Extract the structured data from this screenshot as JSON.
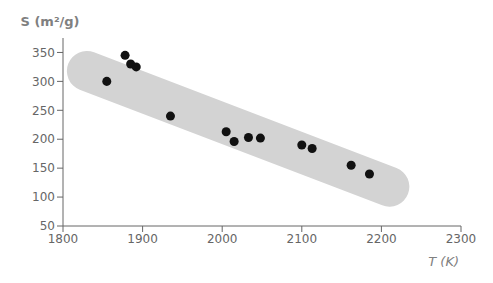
{
  "chart_data": {
    "type": "scatter",
    "xlabel": "T (K)",
    "ylabel": "S (m²/g)",
    "x": [
      1855,
      1878,
      1885,
      1892,
      1935,
      2005,
      2015,
      2033,
      2048,
      2100,
      2113,
      2162,
      2185
    ],
    "values": [
      300,
      345,
      330,
      325,
      240,
      213,
      196,
      203,
      202,
      190,
      184,
      155,
      140
    ],
    "color": "#111111",
    "xlim": [
      1800,
      2300
    ],
    "ylim": [
      50,
      375
    ],
    "xticks": [
      1800,
      1900,
      2000,
      2100,
      2200,
      2300
    ],
    "yticks": [
      50,
      100,
      150,
      200,
      250,
      300,
      350
    ],
    "grid": false,
    "band": {
      "x": [
        1830,
        2210
      ],
      "y": [
        318,
        118
      ],
      "color": "#d3d3d3"
    }
  }
}
